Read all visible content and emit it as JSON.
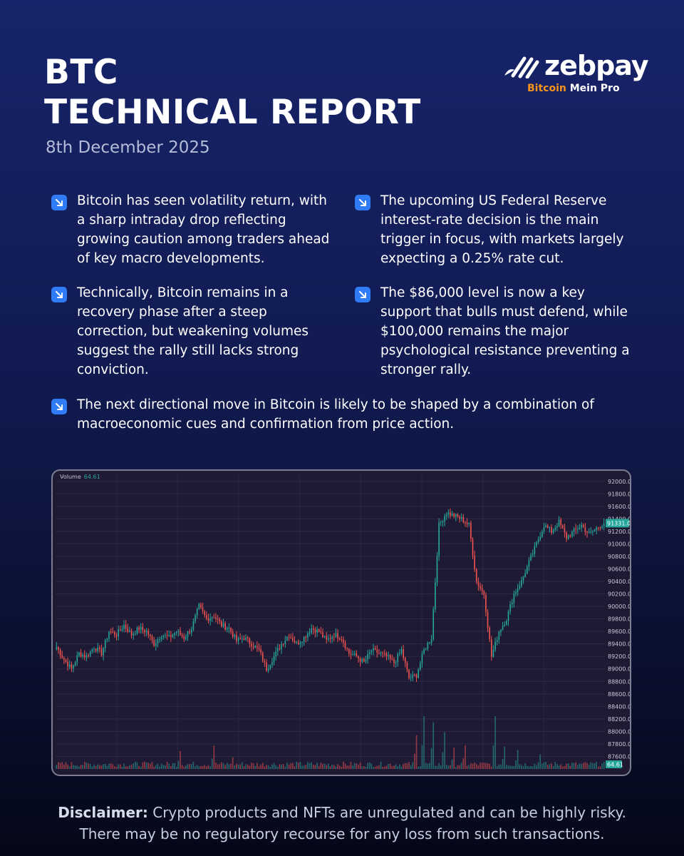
{
  "header": {
    "title_line1": "BTC",
    "title_line2": "TECHNICAL REPORT",
    "date": "8th December 2025"
  },
  "brand": {
    "name": "zebpay",
    "tagline_part1": "Bitcoin",
    "tagline_part2": " Mein Pro",
    "accent_color": "#f7931a",
    "icon": "zebpay-logo-icon"
  },
  "bullets": [
    {
      "text": "Bitcoin has seen volatility return, with a sharp intraday drop reflecting growing caution among traders ahead of key macro developments.",
      "icon": "arrow-down-right-icon"
    },
    {
      "text": "The upcoming US Federal Reserve interest-rate decision is the main trigger in focus, with markets largely expecting a 0.25% rate cut.",
      "icon": "arrow-down-right-icon"
    },
    {
      "text": "Technically, Bitcoin remains in a recovery phase after a steep correction, but weakening volumes suggest the rally still lacks strong conviction.",
      "icon": "arrow-down-right-icon"
    },
    {
      "text": "The $86,000 level is now a key support that bulls must defend, while $100,000 remains the major psychological resistance preventing a stronger rally.",
      "icon": "arrow-down-right-icon"
    },
    {
      "text": "The next directional move in Bitcoin is likely to be shaped by a combination of macroeconomic cues and confirmation from price action.",
      "icon": "arrow-down-right-icon"
    }
  ],
  "chart_data": {
    "type": "candlestick",
    "ylim": [
      87400,
      92100
    ],
    "y_ticks": [
      "92000.0",
      "91800.0",
      "91600.0",
      "91400.0",
      "91200.0",
      "91000.0",
      "90800.0",
      "90600.0",
      "90400.0",
      "90200.0",
      "90000.0",
      "89800.0",
      "89600.0",
      "89400.0",
      "89200.0",
      "89000.0",
      "88800.0",
      "88600.0",
      "88400.0",
      "88200.0",
      "88000.0",
      "87800.0",
      "87600.0"
    ],
    "last_price_label": "91331.0",
    "last_price": 91331,
    "volume_label": "Volume",
    "volume_value": "64.61",
    "up_color": "#26a69a",
    "down_color": "#ef5350",
    "price_path": [
      89350,
      89150,
      89000,
      89250,
      89200,
      89350,
      89250,
      89600,
      89550,
      89700,
      89550,
      89650,
      89600,
      89400,
      89550,
      89500,
      89600,
      89500,
      89650,
      90000,
      89800,
      89850,
      89700,
      89650,
      89450,
      89500,
      89400,
      89300,
      89000,
      89200,
      89400,
      89550,
      89400,
      89500,
      89650,
      89600,
      89450,
      89550,
      89500,
      89250,
      89200,
      89100,
      89300,
      89250,
      89200,
      89100,
      89300,
      88850,
      88900,
      89300,
      89500,
      91300,
      91500,
      91450,
      91400,
      91300,
      90400,
      90200,
      89200,
      89600,
      89800,
      90200,
      90400,
      90700,
      91000,
      91300,
      91200,
      91350,
      91100,
      91200,
      91300,
      91150,
      91250,
      91331
    ],
    "steps_per_segment": 4,
    "volume_spikes": [
      {
        "at": 0.285,
        "value": 44,
        "dir": "up"
      },
      {
        "at": 0.225,
        "value": 34,
        "dir": "up"
      },
      {
        "at": 0.32,
        "value": 22,
        "dir": "up"
      },
      {
        "at": 0.655,
        "value": 64,
        "dir": "down"
      },
      {
        "at": 0.67,
        "value": 100,
        "dir": "down"
      },
      {
        "at": 0.685,
        "value": 88,
        "dir": "up"
      },
      {
        "at": 0.705,
        "value": 70,
        "dir": "up"
      },
      {
        "at": 0.725,
        "value": 40,
        "dir": "down"
      },
      {
        "at": 0.745,
        "value": 45,
        "dir": "up"
      },
      {
        "at": 0.8,
        "value": 100,
        "dir": "down"
      },
      {
        "at": 0.815,
        "value": 42,
        "dir": "up"
      },
      {
        "at": 0.84,
        "value": 36,
        "dir": "up"
      },
      {
        "at": 0.88,
        "value": 28,
        "dir": "up"
      }
    ]
  },
  "disclaimer": {
    "label": "Disclaimer:",
    "line1": " Crypto products and NFTs are unregulated and can be highly risky.",
    "line2": "There may be no regulatory recourse for any loss from such transactions."
  }
}
